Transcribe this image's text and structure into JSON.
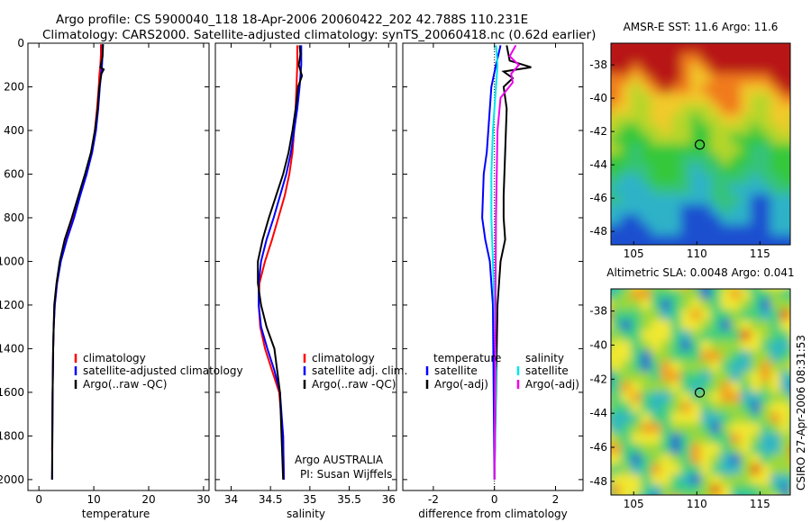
{
  "figure": {
    "title_line1": "Argo profile: CS 5900040_118 18-Apr-2006 20060422_202 42.788S 110.231E",
    "title_line2": "Climatology: CARS2000. Satellite-adjusted climatology: synTS_20060418.nc (0.62d earlier)",
    "side_stamp": "CSIRO 27-Apr-2006 08:31:53",
    "credit_line1": "Argo AUSTRALIA",
    "credit_line2": "PI: Susan Wijffels"
  },
  "colors": {
    "climatology": "#ff0000",
    "satellite": "#0000ff",
    "argo": "#000000",
    "sal_satellite": "#00e5ee",
    "sal_argo": "#ee00ee"
  },
  "chart_data": [
    {
      "type": "line",
      "id": "temp",
      "xlabel": "temperature",
      "ylabel": "",
      "xlim": [
        -2,
        31
      ],
      "ylim": [
        2050,
        0
      ],
      "y_reversed": true,
      "xticks": [
        0,
        10,
        20,
        30
      ],
      "xtick_labels": [
        "0",
        "10",
        "20",
        "30"
      ],
      "yticks": [
        0,
        200,
        400,
        600,
        800,
        1000,
        1200,
        1400,
        1600,
        1800,
        2000
      ],
      "ytick_labels": [
        "0",
        "200",
        "400",
        "600",
        "800",
        "1000",
        "1200",
        "1400",
        "1600",
        "1800",
        "2000"
      ],
      "legend": [
        "climatology",
        "satellite-adjusted climatology",
        "Argo(..raw -QC)"
      ],
      "legend_position": "lower-right",
      "series": [
        {
          "name": "climatology",
          "color_key": "climatology",
          "x": [
            11.3,
            11.3,
            11.2,
            11.0,
            10.9,
            10.6,
            10.2,
            9.6,
            8.5,
            7.3,
            6.2,
            4.9,
            3.9,
            3.3,
            2.9,
            2.7,
            2.6,
            2.5,
            2.4
          ],
          "y": [
            5,
            50,
            100,
            150,
            200,
            300,
            400,
            500,
            600,
            700,
            800,
            900,
            1000,
            1100,
            1200,
            1300,
            1400,
            1600,
            1870
          ]
        },
        {
          "name": "satellite-adjusted climatology",
          "color_key": "satellite",
          "x": [
            11.6,
            11.6,
            11.5,
            11.3,
            11.1,
            10.8,
            10.4,
            9.7,
            8.7,
            7.5,
            6.4,
            5.1,
            4.0,
            3.3,
            2.9,
            2.7,
            2.6,
            2.5,
            2.4
          ],
          "y": [
            5,
            50,
            100,
            150,
            200,
            300,
            400,
            500,
            600,
            700,
            800,
            900,
            1000,
            1100,
            1200,
            1300,
            1400,
            1600,
            2000
          ]
        },
        {
          "name": "Argo(..raw -QC)",
          "color_key": "argo",
          "x": [
            11.7,
            11.6,
            11.2,
            11.8,
            11.4,
            11.0,
            10.7,
            10.2,
            9.5,
            8.4,
            7.2,
            6.0,
            4.7,
            3.8,
            3.2,
            2.8,
            2.6,
            2.5,
            2.4
          ],
          "y": [
            5,
            60,
            110,
            120,
            140,
            200,
            300,
            400,
            500,
            600,
            700,
            800,
            900,
            1000,
            1100,
            1200,
            1400,
            1600,
            2000
          ]
        }
      ]
    },
    {
      "type": "line",
      "id": "sal",
      "xlabel": "salinity",
      "ylabel": "",
      "xlim": [
        33.8,
        36.1
      ],
      "ylim": [
        2050,
        0
      ],
      "y_reversed": true,
      "xticks": [
        34,
        34.5,
        35,
        35.5,
        36
      ],
      "xtick_labels": [
        "34",
        "34.5",
        "35",
        "35.5",
        "36"
      ],
      "legend": [
        "climatology",
        "satellite adj. clim.",
        "Argo(..raw -QC)"
      ],
      "legend_position": "lower-right",
      "series": [
        {
          "name": "climatology",
          "color_key": "climatology",
          "x": [
            34.84,
            34.84,
            34.83,
            34.82,
            34.8,
            34.78,
            34.74,
            34.68,
            34.6,
            34.52,
            34.43,
            34.36,
            34.35,
            34.37,
            34.43,
            34.52,
            34.61,
            34.66,
            34.67
          ],
          "y": [
            10,
            100,
            200,
            300,
            400,
            500,
            600,
            700,
            800,
            900,
            1000,
            1100,
            1200,
            1300,
            1400,
            1500,
            1600,
            1800,
            2000
          ]
        },
        {
          "name": "satellite adj. clim.",
          "color_key": "satellite",
          "x": [
            34.89,
            34.89,
            34.87,
            34.84,
            34.8,
            34.76,
            34.7,
            34.62,
            34.54,
            34.45,
            34.38,
            34.35,
            34.35,
            34.38,
            34.46,
            34.55,
            34.62,
            34.66,
            34.67
          ],
          "y": [
            10,
            100,
            200,
            300,
            400,
            500,
            600,
            700,
            800,
            900,
            1000,
            1100,
            1200,
            1300,
            1400,
            1500,
            1600,
            1800,
            2000
          ]
        },
        {
          "name": "Argo(..raw -QC)",
          "color_key": "argo",
          "x": [
            34.87,
            34.88,
            34.86,
            34.9,
            34.85,
            34.82,
            34.78,
            34.73,
            34.66,
            34.57,
            34.48,
            34.4,
            34.34,
            34.34,
            34.38,
            34.45,
            34.55,
            34.62,
            34.66
          ],
          "y": [
            10,
            50,
            100,
            150,
            200,
            300,
            400,
            500,
            600,
            700,
            800,
            900,
            1000,
            1100,
            1200,
            1300,
            1400,
            1600,
            2000
          ]
        }
      ]
    },
    {
      "type": "line",
      "id": "diff",
      "xlabel": "difference from climatology",
      "ylabel": "",
      "xlim": [
        -3.0,
        2.9
      ],
      "ylim": [
        2050,
        0
      ],
      "y_reversed": true,
      "xticks": [
        -2,
        0,
        2
      ],
      "xtick_labels": [
        "-2",
        "0",
        "2"
      ],
      "legend_headers": [
        "temperature",
        "salinity"
      ],
      "legend": [
        "satellite",
        "Argo(-adj)",
        "satellite",
        "Argo(-adj)"
      ],
      "legend_position": "lower-right",
      "series": [
        {
          "name": "temperature satellite",
          "color_key": "satellite",
          "x": [
            0.2,
            0.05,
            -0.1,
            -0.15,
            -0.2,
            -0.25,
            -0.35,
            -0.4,
            -0.3,
            -0.15,
            -0.05,
            0
          ],
          "y": [
            10,
            100,
            200,
            300,
            400,
            500,
            600,
            800,
            900,
            1000,
            1200,
            2000
          ]
        },
        {
          "name": "temperature Argo(-adj)",
          "color_key": "argo",
          "x": [
            0.4,
            0.5,
            1.2,
            0.3,
            0.6,
            0.3,
            0.4,
            0.35,
            0.3,
            0.3,
            0.35,
            0.2,
            0.1,
            0
          ],
          "y": [
            10,
            80,
            110,
            130,
            160,
            200,
            300,
            500,
            700,
            800,
            900,
            1000,
            1200,
            2000
          ]
        },
        {
          "name": "salinity satellite",
          "color_key": "sal_satellite",
          "x": [
            0.05,
            0.1,
            0.05,
            0.0,
            -0.05,
            -0.1,
            -0.1,
            -0.05,
            0.0,
            0.05,
            0.0
          ],
          "y": [
            10,
            100,
            200,
            300,
            400,
            600,
            800,
            1000,
            1200,
            1500,
            2000
          ]
        },
        {
          "name": "salinity Argo(-adj)",
          "color_key": "sal_argo",
          "x": [
            0.7,
            0.5,
            0.8,
            0.55,
            0.6,
            0.2,
            0.1,
            0.05,
            0.0
          ],
          "y": [
            10,
            60,
            100,
            140,
            180,
            250,
            400,
            800,
            2000
          ]
        }
      ]
    },
    {
      "type": "heatmap",
      "id": "sst",
      "title": "AMSR-E SST: 11.6 Argo: 11.6",
      "xlim": [
        103.2,
        117.4
      ],
      "ylim": [
        -48.8,
        -36.7
      ],
      "xticks": [
        105,
        110,
        115
      ],
      "xtick_labels": [
        "105",
        "110",
        "115"
      ],
      "yticks": [
        -38,
        -40,
        -42,
        -44,
        -46,
        -48
      ],
      "ytick_labels": [
        "-38",
        "-40",
        "-42",
        "-44",
        "-46",
        "-48"
      ],
      "marker": {
        "lon": 110.231,
        "lat": -42.788
      }
    },
    {
      "type": "heatmap",
      "id": "sla",
      "title": "Altimetric SLA: 0.0048 Argo: 0.041",
      "xlim": [
        103.2,
        117.4
      ],
      "ylim": [
        -48.8,
        -36.7
      ],
      "xticks": [
        105,
        110,
        115
      ],
      "xtick_labels": [
        "105",
        "110",
        "115"
      ],
      "yticks": [
        -38,
        -40,
        -42,
        -44,
        -46,
        -48
      ],
      "ytick_labels": [
        "-38",
        "-40",
        "-42",
        "-44",
        "-46",
        "-48"
      ],
      "marker": {
        "lon": 110.231,
        "lat": -42.788
      }
    }
  ]
}
